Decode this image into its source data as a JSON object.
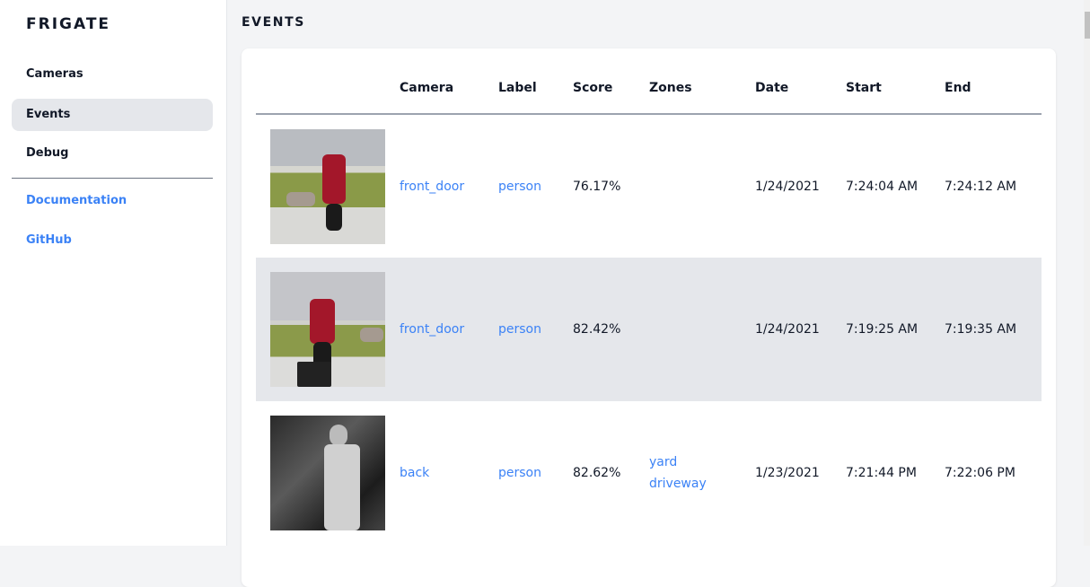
{
  "sidebar": {
    "brand": "FRIGATE",
    "items": [
      {
        "label": "Cameras"
      },
      {
        "label": "Events",
        "active": true
      },
      {
        "label": "Debug"
      }
    ],
    "links": [
      {
        "label": "Documentation"
      },
      {
        "label": "GitHub"
      }
    ]
  },
  "page": {
    "title": "EVENTS"
  },
  "table": {
    "headers": [
      "",
      "Camera",
      "Label",
      "Score",
      "Zones",
      "Date",
      "Start",
      "End"
    ],
    "rows": [
      {
        "thumbnail": "person walking dog, red jacket",
        "camera": "front_door",
        "label": "person",
        "score": "76.17%",
        "zones": [
          "",
          ""
        ],
        "date": "1/24/2021",
        "start": "7:24:04 AM",
        "end": "7:24:12 AM"
      },
      {
        "thumbnail": "person walking dog, red jacket",
        "camera": "front_door",
        "label": "person",
        "score": "82.42%",
        "zones": [
          "",
          ""
        ],
        "date": "1/24/2021",
        "start": "7:19:25 AM",
        "end": "7:19:35 AM"
      },
      {
        "thumbnail": "night infrared person",
        "camera": "back",
        "label": "person",
        "score": "82.62%",
        "zones": [
          "yard",
          "driveway"
        ],
        "date": "1/23/2021",
        "start": "7:21:44 PM",
        "end": "7:22:06 PM"
      }
    ]
  },
  "colors": {
    "accent": "#3b82f6",
    "active_bg": "#e5e7eb",
    "page_bg": "#f3f4f6"
  }
}
